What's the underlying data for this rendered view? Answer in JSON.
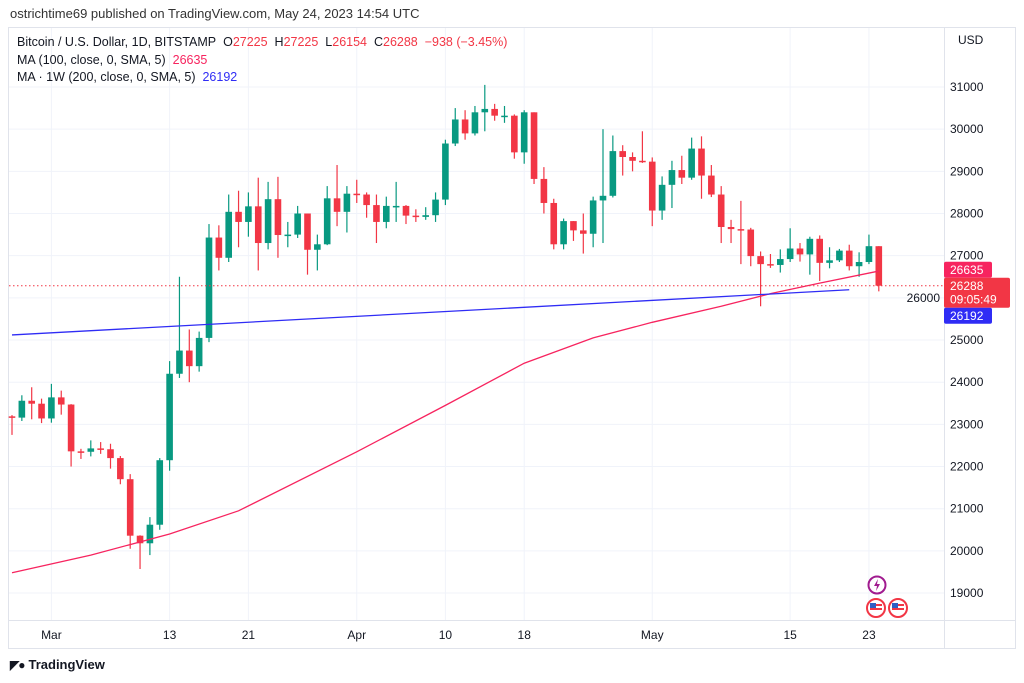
{
  "publisher_line": "ostrichtime69 published on TradingView.com, May 24, 2023 14:54 UTC",
  "legend": {
    "symbol": "Bitcoin / U.S. Dollar, 1D, BITSTAMP",
    "o_label": "O",
    "o": "27225",
    "h_label": "H",
    "h": "27225",
    "l_label": "L",
    "l": "26154",
    "c_label": "C",
    "c": "26288",
    "change": "−938 (−3.45%)",
    "ma100_label": "MA (100, close, 0, SMA, 5)",
    "ma100_value": "26635",
    "ma200w_label": "MA · 1W (200, close, 0, SMA, 5)",
    "ma200w_value": "26192"
  },
  "currency": "USD",
  "price_tags": {
    "ma100": "26635",
    "last": "26288",
    "countdown": "09:05:49",
    "ma200w": "26192"
  },
  "branding": "TradingView",
  "colors": {
    "up": "#089981",
    "down": "#f23645",
    "ma100": "#f7245f",
    "ma200w": "#2f2cf5",
    "grid": "#f0f3fa"
  },
  "chart_data": {
    "type": "candlestick",
    "title": "Bitcoin / U.S. Dollar, 1D, BITSTAMP",
    "ylim": [
      18400,
      31600
    ],
    "grid": true,
    "y_ticks": [
      31000,
      30000,
      29000,
      28000,
      27000,
      26000,
      25000,
      24000,
      23000,
      22000,
      21000,
      20000,
      19000
    ],
    "x_ticks": [
      {
        "label": "Mar",
        "date": "2023-03-01"
      },
      {
        "label": "13",
        "date": "2023-03-13"
      },
      {
        "label": "21",
        "date": "2023-03-21"
      },
      {
        "label": "Apr",
        "date": "2023-04-01"
      },
      {
        "label": "10",
        "date": "2023-04-10"
      },
      {
        "label": "18",
        "date": "2023-04-18"
      },
      {
        "label": "May",
        "date": "2023-05-01"
      },
      {
        "label": "15",
        "date": "2023-05-15"
      },
      {
        "label": "23",
        "date": "2023-05-23"
      }
    ],
    "start_date": "2023-02-25",
    "candles_ohlc": [
      [
        23190,
        23220,
        22750,
        23160
      ],
      [
        23160,
        23690,
        23080,
        23560
      ],
      [
        23560,
        23880,
        23120,
        23490
      ],
      [
        23490,
        23610,
        23030,
        23140
      ],
      [
        23140,
        23960,
        23040,
        23640
      ],
      [
        23640,
        23800,
        23230,
        23470
      ],
      [
        23470,
        23480,
        22000,
        22360
      ],
      [
        22360,
        22420,
        22180,
        22350
      ],
      [
        22350,
        22620,
        22240,
        22430
      ],
      [
        22430,
        22580,
        22300,
        22410
      ],
      [
        22410,
        22540,
        21950,
        22200
      ],
      [
        22200,
        22250,
        21580,
        21700
      ],
      [
        21700,
        21820,
        20050,
        20360
      ],
      [
        20360,
        20370,
        19570,
        20180
      ],
      [
        20180,
        20800,
        19900,
        20620
      ],
      [
        20620,
        22200,
        20500,
        22150
      ],
      [
        22150,
        24500,
        21900,
        24200
      ],
      [
        24200,
        26500,
        24100,
        24750
      ],
      [
        24750,
        25250,
        24000,
        24380
      ],
      [
        24380,
        25200,
        24250,
        25050
      ],
      [
        25050,
        27750,
        24950,
        27430
      ],
      [
        27430,
        27720,
        26650,
        26950
      ],
      [
        26950,
        28450,
        26850,
        28040
      ],
      [
        28040,
        28540,
        27200,
        27800
      ],
      [
        27800,
        28500,
        27450,
        28170
      ],
      [
        28170,
        28850,
        26650,
        27300
      ],
      [
        27300,
        28750,
        27150,
        28340
      ],
      [
        28340,
        28870,
        26950,
        27490
      ],
      [
        27490,
        27800,
        27200,
        27500
      ],
      [
        27500,
        28180,
        27420,
        28000
      ],
      [
        28000,
        28000,
        26550,
        27140
      ],
      [
        27140,
        27500,
        26650,
        27270
      ],
      [
        27270,
        28650,
        27250,
        28360
      ],
      [
        28360,
        29150,
        27700,
        28040
      ],
      [
        28040,
        28650,
        27550,
        28470
      ],
      [
        28470,
        28800,
        28250,
        28450
      ],
      [
        28450,
        28500,
        27900,
        28200
      ],
      [
        28200,
        28450,
        27300,
        27800
      ],
      [
        27800,
        28400,
        27650,
        28180
      ],
      [
        28180,
        28750,
        27800,
        28180
      ],
      [
        28180,
        28200,
        27750,
        27950
      ],
      [
        27950,
        28100,
        27800,
        27920
      ],
      [
        27920,
        28150,
        27850,
        27960
      ],
      [
        27960,
        28500,
        27800,
        28330
      ],
      [
        28330,
        29750,
        28200,
        29660
      ],
      [
        29660,
        30500,
        29600,
        30230
      ],
      [
        30230,
        30450,
        29750,
        29900
      ],
      [
        29900,
        30550,
        29850,
        30400
      ],
      [
        30400,
        31050,
        29950,
        30480
      ],
      [
        30480,
        30600,
        30200,
        30320
      ],
      [
        30320,
        30550,
        30150,
        30320
      ],
      [
        30320,
        30350,
        29300,
        29450
      ],
      [
        29450,
        30450,
        29180,
        30400
      ],
      [
        30400,
        30400,
        28700,
        28820
      ],
      [
        28820,
        29100,
        28000,
        28250
      ],
      [
        28250,
        28350,
        27150,
        27270
      ],
      [
        27270,
        27880,
        27150,
        27820
      ],
      [
        27820,
        27820,
        27350,
        27600
      ],
      [
        27600,
        28000,
        27050,
        27520
      ],
      [
        27520,
        28400,
        27200,
        28310
      ],
      [
        28310,
        30000,
        27300,
        28420
      ],
      [
        28420,
        29850,
        28380,
        29480
      ],
      [
        29480,
        29620,
        28900,
        29340
      ],
      [
        29340,
        29450,
        29000,
        29250
      ],
      [
        29250,
        29950,
        29200,
        29230
      ],
      [
        29230,
        29330,
        27700,
        28070
      ],
      [
        28070,
        28880,
        27850,
        28680
      ],
      [
        28680,
        29250,
        28130,
        29030
      ],
      [
        29030,
        29370,
        28700,
        28850
      ],
      [
        28850,
        29800,
        28800,
        29540
      ],
      [
        29540,
        29830,
        28350,
        28900
      ],
      [
        28900,
        29150,
        28390,
        28450
      ],
      [
        28450,
        28650,
        27300,
        27680
      ],
      [
        27680,
        27850,
        27300,
        27630
      ],
      [
        27630,
        28300,
        26800,
        27620
      ],
      [
        27620,
        27660,
        26750,
        26990
      ],
      [
        26990,
        27100,
        25800,
        26800
      ],
      [
        26800,
        27040,
        26710,
        26780
      ],
      [
        26780,
        27150,
        26600,
        26920
      ],
      [
        26920,
        27650,
        26850,
        27170
      ],
      [
        27170,
        27300,
        26860,
        27030
      ],
      [
        27030,
        27450,
        26550,
        27400
      ],
      [
        27400,
        27480,
        26400,
        26830
      ],
      [
        26830,
        27200,
        26700,
        26890
      ],
      [
        26890,
        27160,
        26850,
        27120
      ],
      [
        27120,
        27260,
        26650,
        26750
      ],
      [
        26750,
        27080,
        26500,
        26850
      ],
      [
        26850,
        27500,
        26800,
        27225
      ],
      [
        27225,
        27225,
        26154,
        26288
      ]
    ],
    "series": [
      {
        "name": "MA (100, close, 0, SMA, 5)",
        "points": [
          [
            "2023-02-25",
            19480
          ],
          [
            "2023-03-05",
            19900
          ],
          [
            "2023-03-13",
            20400
          ],
          [
            "2023-03-20",
            20950
          ],
          [
            "2023-04-01",
            22350
          ],
          [
            "2023-04-10",
            23450
          ],
          [
            "2023-04-18",
            24450
          ],
          [
            "2023-04-25",
            25050
          ],
          [
            "2023-05-01",
            25420
          ],
          [
            "2023-05-08",
            25800
          ],
          [
            "2023-05-13",
            26100
          ],
          [
            "2023-05-18",
            26350
          ],
          [
            "2023-05-24",
            26635
          ]
        ]
      },
      {
        "name": "MA · 1W (200, close, 0, SMA, 5)",
        "points": [
          [
            "2023-02-25",
            25120
          ],
          [
            "2023-05-21",
            26192
          ]
        ]
      }
    ]
  }
}
